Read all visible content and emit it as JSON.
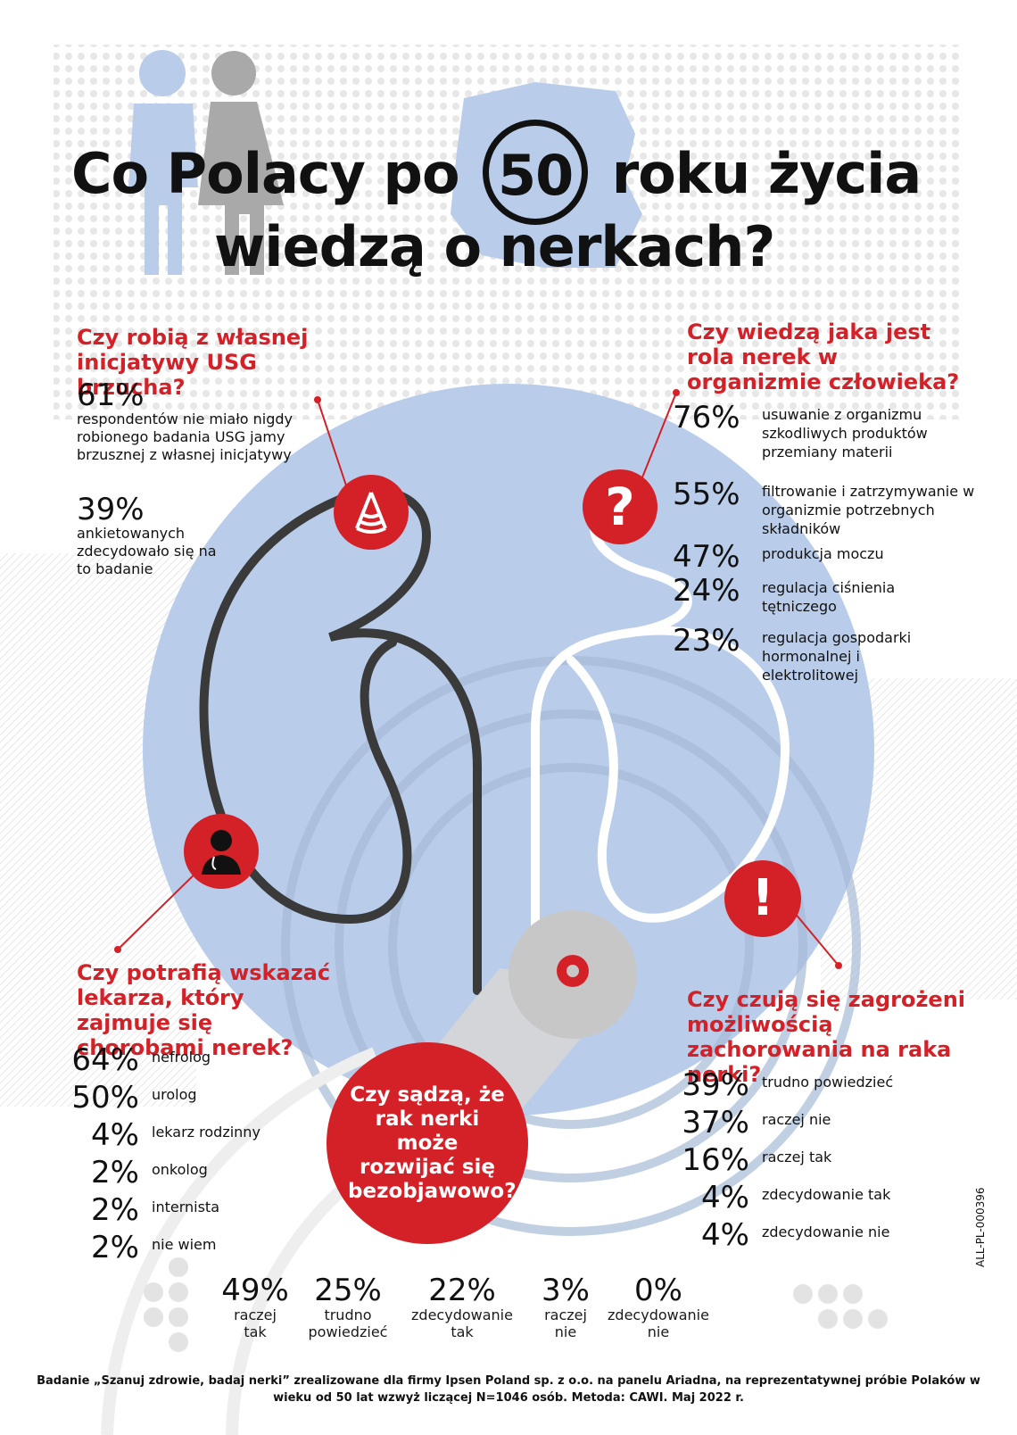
{
  "title": {
    "line1_before": "Co Polacy po",
    "badge": "50",
    "line1_after": "roku życia",
    "line2": "wiedzą o nerkach?"
  },
  "usg": {
    "heading": "Czy robią z własnej inicjatywy USG brzucha?",
    "items": [
      {
        "pct": "61%",
        "text": "respondentów nie miało nigdy robionego badania USG jamy brzusznej z własnej inicjatywy"
      },
      {
        "pct": "39%",
        "text": "ankietowanych zdecydowało się na to badanie"
      }
    ]
  },
  "role": {
    "heading": "Czy wiedzą jaka jest rola nerek w organizmie człowieka?",
    "items": [
      {
        "pct": "76%",
        "text": "usuwanie z organizmu szkodliwych produktów przemiany materii"
      },
      {
        "pct": "55%",
        "text": "filtrowanie i zatrzymywanie w organizmie potrzebnych składników"
      },
      {
        "pct": "47%",
        "text": "produkcja moczu"
      },
      {
        "pct": "24%",
        "text": "regulacja ciśnienia tętniczego"
      },
      {
        "pct": "23%",
        "text": "regulacja gospodarki hormonalnej i elektrolitowej"
      }
    ]
  },
  "doctor": {
    "heading": "Czy potrafią wskazać lekarza, który zajmuje się chorobami nerek?",
    "items": [
      {
        "pct": "64%",
        "text": "nefrolog"
      },
      {
        "pct": "50%",
        "text": "urolog"
      },
      {
        "pct": "4%",
        "text": "lekarz rodzinny"
      },
      {
        "pct": "2%",
        "text": "onkolog"
      },
      {
        "pct": "2%",
        "text": "internista"
      },
      {
        "pct": "2%",
        "text": "nie wiem"
      }
    ]
  },
  "risk": {
    "heading": "Czy czują się zagrożeni możliwością zachorowania na raka nerki?",
    "items": [
      {
        "pct": "39%",
        "text": "trudno powiedzieć"
      },
      {
        "pct": "37%",
        "text": "raczej nie"
      },
      {
        "pct": "16%",
        "text": "raczej tak"
      },
      {
        "pct": "4%",
        "text": "zdecydowanie tak"
      },
      {
        "pct": "4%",
        "text": "zdecydowanie nie"
      }
    ]
  },
  "asymptomatic": {
    "question": "Czy sądzą, że rak nerki może rozwijać się bezobjawowo?",
    "items": [
      {
        "pct": "49%",
        "text": "raczej tak"
      },
      {
        "pct": "25%",
        "text": "trudno powiedzieć"
      },
      {
        "pct": "22%",
        "text": "zdecydowanie tak"
      },
      {
        "pct": "3%",
        "text": "raczej nie"
      },
      {
        "pct": "0%",
        "text": "zdecydowanie nie"
      }
    ]
  },
  "icons": {
    "ultrasound": "ultrasound-icon",
    "question": "?",
    "doctor": "doctor-icon",
    "alert": "!"
  },
  "footer": "Badanie „Szanuj zdrowie, badaj nerki” zrealizowane dla firmy Ipsen Poland sp. z o.o. na panelu Ariadna, na reprezentatywnej próbie Polaków w wieku od 50 lat wzwyż liczącej N=1046 osób. Metoda: CAWI. Maj 2022 r.",
  "doc_code": "ALL-PL-000396",
  "colors": {
    "accent": "#d42127",
    "circle": "#b9cdeb",
    "dark": "#3a3a3a"
  }
}
